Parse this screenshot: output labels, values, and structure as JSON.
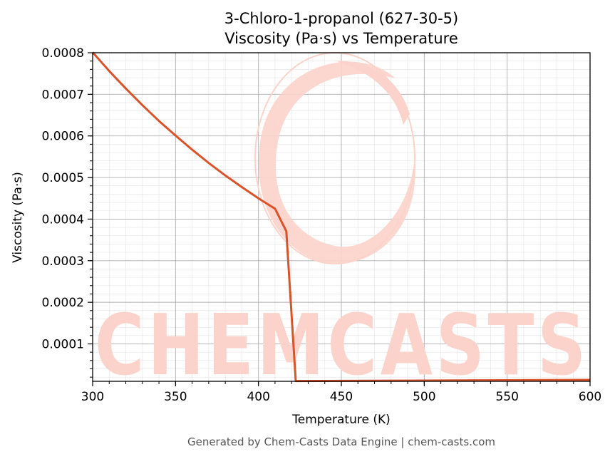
{
  "colors": {
    "series": "#d9532b",
    "grid_major": "#b0b0b0",
    "grid_minor": "#e4e4e4",
    "watermark": "#fbd3cb",
    "footer_text": "#555555"
  },
  "footer": "Generated by Chem-Casts Data Engine | chem-casts.com",
  "watermark": {
    "text": "CHEMCASTS"
  },
  "chart_data": {
    "type": "line",
    "title": "3-Chloro-1-propanol (627-30-5)",
    "subtitle": "Viscosity (Pa·s) vs Temperature",
    "xlabel": "Temperature (K)",
    "ylabel": "Viscosity (Pa·s)",
    "xlim": [
      300,
      600
    ],
    "ylim": [
      1e-05,
      0.0008
    ],
    "x_ticks": [
      300,
      350,
      400,
      450,
      500,
      550,
      600
    ],
    "x_tick_labels": [
      "300",
      "350",
      "400",
      "450",
      "500",
      "550",
      "600"
    ],
    "y_ticks": [
      0.0001,
      0.0002,
      0.0003,
      0.0004,
      0.0005,
      0.0006,
      0.0007,
      0.0008
    ],
    "y_tick_labels": [
      "0.0001",
      "0.0002",
      "0.0003",
      "0.0004",
      "0.0005",
      "0.0006",
      "0.0007",
      "0.0008"
    ],
    "grid": true,
    "minor_grid": true,
    "legend": "none",
    "series": [
      {
        "x": [
          300,
          310,
          320,
          330,
          340,
          350,
          360,
          370,
          380,
          390,
          400,
          410,
          416.8,
          422.5,
          450,
          500,
          550,
          600
        ],
        "y": [
          0.000801,
          0.000756,
          0.000714,
          0.000674,
          0.000636,
          0.000601,
          0.000567,
          0.000535,
          0.000505,
          0.000477,
          0.00045,
          0.000425,
          0.000371,
          1.07e-05,
          1.1e-05,
          1.18e-05,
          1.26e-05,
          1.34e-05
        ]
      }
    ]
  }
}
